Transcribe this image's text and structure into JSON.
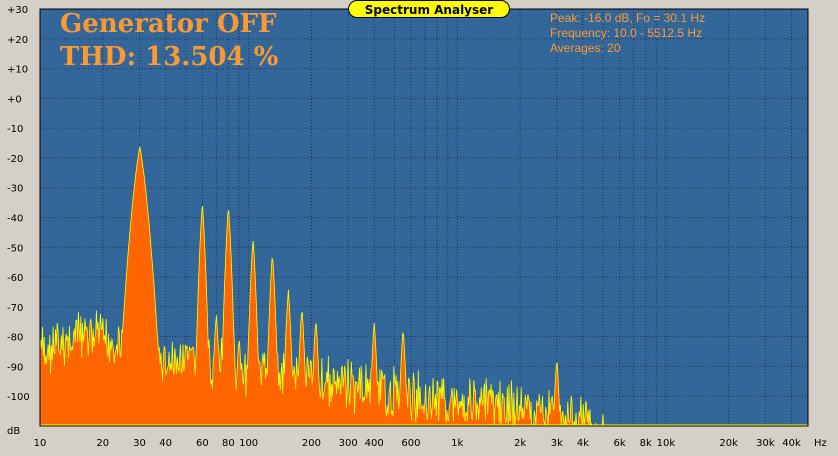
{
  "window": {
    "title": "Spectrum Analyser"
  },
  "overlay": {
    "generator_status": "Generator OFF",
    "thd": "THD: 13.504 %",
    "peak": "Peak: -16.0 dB, Fo = 30.1 Hz",
    "frequency": "Frequency: 10.0 - 5512.5 Hz",
    "averages": "Averages: 20"
  },
  "colors": {
    "plot_background": "#336699",
    "spectrum_fill": "#ff6600",
    "spectrum_line": "#ffff00",
    "overlay_text": "#ff9933",
    "window_background": "#d4d0c8",
    "title_pill": "#ffff00"
  },
  "chart_data": {
    "type": "area",
    "title": "Spectrum Analyser",
    "xscale": "log",
    "xlim": [
      10,
      48000
    ],
    "ylim": [
      -110,
      30
    ],
    "xunit_label": "Hz",
    "yunit_label": "dB",
    "grid": true,
    "xtick_labels": [
      "10",
      "20",
      "30",
      "40",
      "60",
      "80",
      "100",
      "200",
      "300",
      "400",
      "600",
      "1k",
      "2k",
      "3k",
      "4k",
      "6k",
      "8k",
      "10k",
      "20k",
      "30k",
      "40k"
    ],
    "xtick_values": [
      10,
      20,
      30,
      40,
      60,
      80,
      100,
      200,
      300,
      400,
      600,
      1000,
      2000,
      3000,
      4000,
      6000,
      8000,
      10000,
      20000,
      30000,
      40000
    ],
    "ytick_labels": [
      "+30",
      "+20",
      "+10",
      "+0",
      "-10",
      "-20",
      "-30",
      "-40",
      "-50",
      "-60",
      "-70",
      "-80",
      "-90",
      "-100"
    ],
    "ytick_values": [
      30,
      20,
      10,
      0,
      -10,
      -20,
      -30,
      -40,
      -50,
      -60,
      -70,
      -80,
      -90,
      -100
    ],
    "noise_floor": [
      [
        10,
        -81
      ],
      [
        12,
        -80
      ],
      [
        14,
        -77
      ],
      [
        16,
        -76
      ],
      [
        18,
        -75
      ],
      [
        20,
        -77
      ],
      [
        22,
        -79
      ],
      [
        24,
        -78
      ],
      [
        40,
        -85
      ],
      [
        50,
        -84
      ],
      [
        70,
        -86
      ],
      [
        100,
        -87
      ],
      [
        150,
        -89
      ],
      [
        200,
        -90
      ],
      [
        300,
        -92
      ],
      [
        400,
        -94
      ],
      [
        600,
        -96
      ],
      [
        1000,
        -97
      ],
      [
        1500,
        -99
      ],
      [
        2000,
        -100
      ],
      [
        3000,
        -102
      ],
      [
        4000,
        -104
      ],
      [
        4500,
        -108
      ],
      [
        5000,
        -110
      ]
    ],
    "harmonic_peaks": [
      {
        "f": 30.1,
        "db": -16
      },
      {
        "f": 60,
        "db": -35
      },
      {
        "f": 70,
        "db": -72
      },
      {
        "f": 80,
        "db": -36
      },
      {
        "f": 90,
        "db": -80
      },
      {
        "f": 105,
        "db": -47
      },
      {
        "f": 130,
        "db": -52
      },
      {
        "f": 155,
        "db": -64
      },
      {
        "f": 180,
        "db": -70
      },
      {
        "f": 210,
        "db": -74
      },
      {
        "f": 400,
        "db": -75
      },
      {
        "f": 550,
        "db": -77
      },
      {
        "f": 3000,
        "db": -87
      }
    ]
  }
}
